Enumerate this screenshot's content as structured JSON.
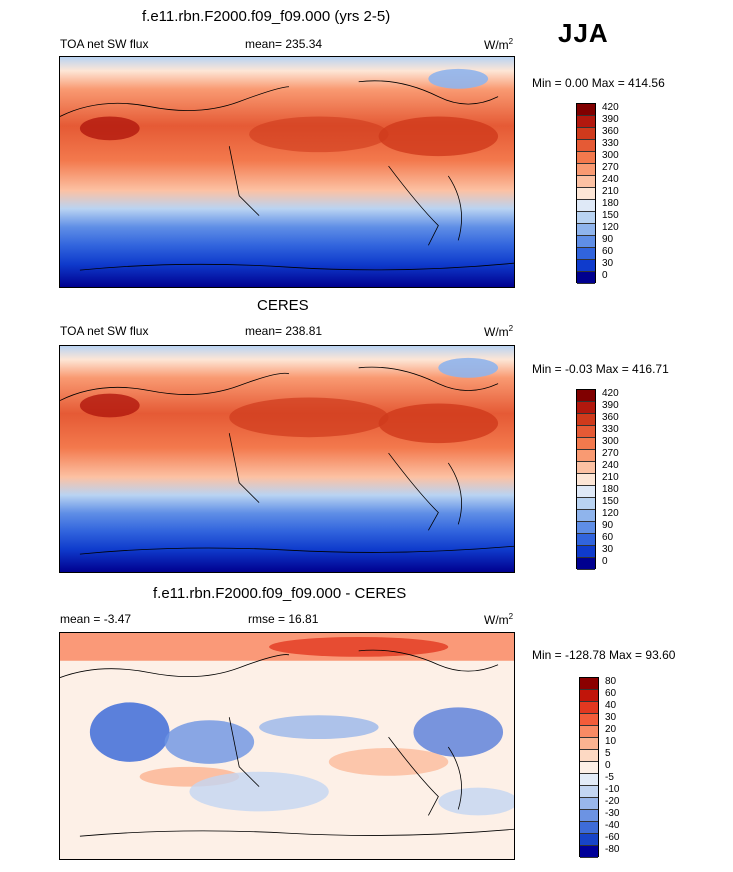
{
  "season": "JJA",
  "panels": [
    {
      "title": "f.e11.rbn.F2000.f09_f09.000 (yrs 2-5)",
      "left_label": "TOA net SW flux",
      "center_label": "mean= 235.34",
      "units_base": "W/m",
      "units_sup": "2",
      "minmax": "Min =   0.00 Max = 414.56",
      "colorbar_labels": [
        "420",
        "390",
        "360",
        "330",
        "300",
        "270",
        "240",
        "210",
        "180",
        "150",
        "120",
        "90",
        "60",
        "30",
        "0"
      ]
    },
    {
      "title": "CERES",
      "left_label": "TOA net SW flux",
      "center_label": "mean= 238.81",
      "units_base": "W/m",
      "units_sup": "2",
      "minmax": "Min =  -0.03 Max = 416.71",
      "colorbar_labels": [
        "420",
        "390",
        "360",
        "330",
        "300",
        "270",
        "240",
        "210",
        "180",
        "150",
        "120",
        "90",
        "60",
        "30",
        "0"
      ]
    },
    {
      "title": "f.e11.rbn.F2000.f09_f09.000 - CERES",
      "left_label": "mean =  -3.47",
      "center_label": "rmse =  16.81",
      "units_base": "W/m",
      "units_sup": "2",
      "minmax": "Min = -128.78 Max =  93.60",
      "colorbar_labels": [
        "80",
        "60",
        "40",
        "30",
        "20",
        "10",
        "5",
        "0",
        "-5",
        "-10",
        "-20",
        "-30",
        "-40",
        "-60",
        "-80"
      ]
    }
  ],
  "colors": {
    "abs_scale": [
      "#800000",
      "#b2180e",
      "#cf3a1c",
      "#e55a35",
      "#f3794d",
      "#f99a72",
      "#fcc1a3",
      "#fde6d6",
      "#dfe9f7",
      "#b9d3f2",
      "#8fb4ec",
      "#5f8ee6",
      "#3164dd",
      "#0f3bcc",
      "#00008f"
    ],
    "diff_scale": [
      "#8b0000",
      "#c1150a",
      "#e23820",
      "#f35c3a",
      "#f98a64",
      "#fbb391",
      "#fdd9c3",
      "#fdf0e7",
      "#e3ecf8",
      "#c3d6f2",
      "#99b7eb",
      "#6c93e3",
      "#3e6cd8",
      "#1744c8",
      "#000099"
    ]
  }
}
